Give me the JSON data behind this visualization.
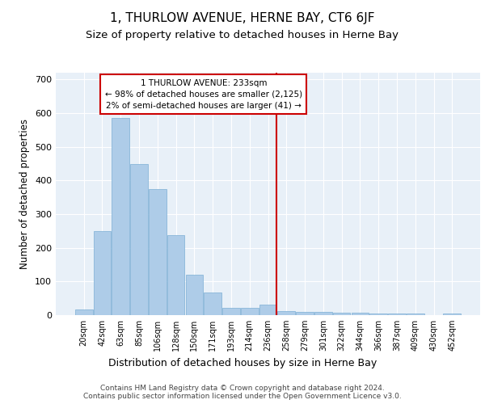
{
  "title": "1, THURLOW AVENUE, HERNE BAY, CT6 6JF",
  "subtitle": "Size of property relative to detached houses in Herne Bay",
  "xlabel": "Distribution of detached houses by size in Herne Bay",
  "ylabel": "Number of detached properties",
  "bar_labels": [
    "20sqm",
    "42sqm",
    "63sqm",
    "85sqm",
    "106sqm",
    "128sqm",
    "150sqm",
    "171sqm",
    "193sqm",
    "214sqm",
    "236sqm",
    "258sqm",
    "279sqm",
    "301sqm",
    "322sqm",
    "344sqm",
    "366sqm",
    "387sqm",
    "409sqm",
    "430sqm",
    "452sqm"
  ],
  "bar_values": [
    17,
    250,
    585,
    450,
    375,
    237,
    120,
    68,
    22,
    22,
    32,
    13,
    10,
    10,
    8,
    8,
    5,
    4,
    5,
    0,
    5
  ],
  "bar_color": "#aecce8",
  "bar_edge_color": "#7bafd4",
  "vline_index": 10,
  "vline_color": "#cc0000",
  "annotation_text": "1 THURLOW AVENUE: 233sqm\n← 98% of detached houses are smaller (2,125)\n2% of semi-detached houses are larger (41) →",
  "annotation_box_color": "#ffffff",
  "annotation_box_edge": "#cc0000",
  "ylim": [
    0,
    720
  ],
  "yticks": [
    0,
    100,
    200,
    300,
    400,
    500,
    600,
    700
  ],
  "bg_color": "#e8f0f8",
  "grid_color": "#ffffff",
  "footer_text": "Contains HM Land Registry data © Crown copyright and database right 2024.\nContains public sector information licensed under the Open Government Licence v3.0.",
  "title_fontsize": 11,
  "subtitle_fontsize": 9.5,
  "xlabel_fontsize": 9,
  "ylabel_fontsize": 8.5,
  "footer_fontsize": 6.5,
  "annot_fontsize": 7.5
}
